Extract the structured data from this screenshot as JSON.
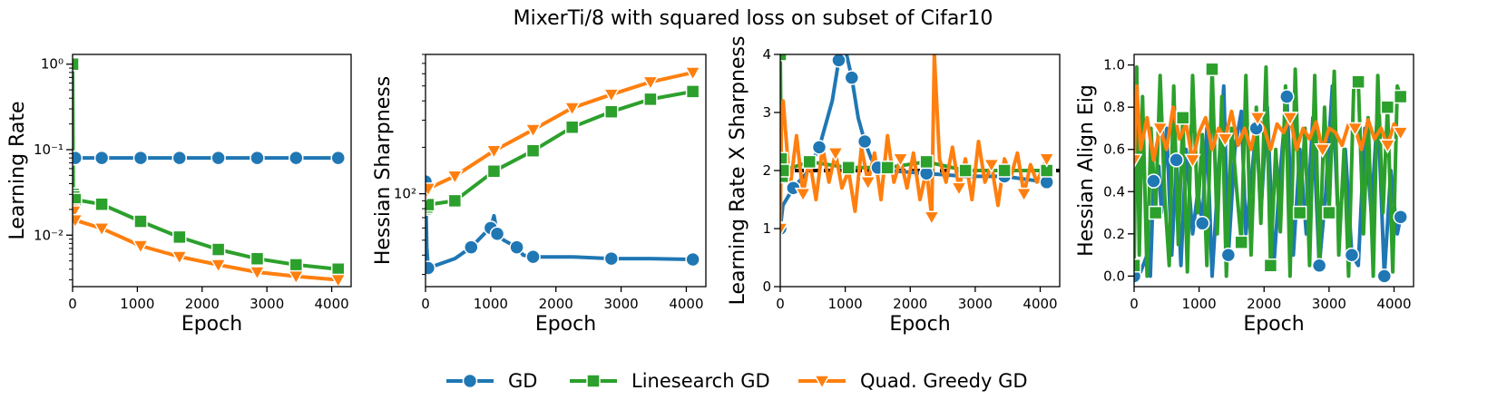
{
  "figure_title": "MixerTi/8 with squared loss on subset of Cifar10",
  "colors": {
    "GD": "#1f77b4",
    "Linesearch GD": "#2ca02c",
    "Quad. Greedy GD": "#ff7f0e",
    "reference": "#000000"
  },
  "legend": [
    {
      "name": "GD",
      "marker": "circle",
      "color": "#1f77b4"
    },
    {
      "name": "Linesearch GD",
      "marker": "square",
      "color": "#2ca02c"
    },
    {
      "name": "Quad. Greedy GD",
      "marker": "triangle-down",
      "color": "#ff7f0e"
    }
  ],
  "chart_data": [
    {
      "type": "line",
      "xlabel": "Epoch",
      "ylabel": "Learning Rate",
      "xlim": [
        0,
        4300
      ],
      "ylim": [
        0.0025,
        1.3
      ],
      "yscale": "log",
      "xticks": [
        0,
        1000,
        2000,
        3000,
        4000
      ],
      "xtick_labels": [
        "0",
        "1000",
        "2000",
        "3000",
        "4000"
      ],
      "yticks": [
        0.01,
        0.1,
        1
      ],
      "ytick_labels": [
        "10⁻²",
        "10⁻¹",
        "10⁰"
      ],
      "series": [
        {
          "name": "GD",
          "x": [
            0,
            20,
            40,
            450,
            1050,
            1650,
            2250,
            2850,
            3450,
            4100
          ],
          "y": [
            0.08,
            0.08,
            0.08,
            0.08,
            0.08,
            0.08,
            0.08,
            0.08,
            0.08,
            0.08
          ]
        },
        {
          "name": "Linesearch GD",
          "x": [
            0,
            10,
            20,
            40,
            450,
            1050,
            1650,
            2250,
            2850,
            3450,
            4100
          ],
          "y": [
            1.0,
            0.03,
            0.028,
            0.026,
            0.023,
            0.0145,
            0.0095,
            0.0068,
            0.0053,
            0.0045,
            0.004
          ]
        },
        {
          "name": "Quad. Greedy GD",
          "x": [
            0,
            20,
            40,
            450,
            1050,
            1650,
            2250,
            2850,
            3450,
            4100
          ],
          "y": [
            0.02,
            0.019,
            0.015,
            0.012,
            0.0075,
            0.0056,
            0.0045,
            0.0037,
            0.0033,
            0.003
          ]
        }
      ]
    },
    {
      "type": "line",
      "xlabel": "Epoch",
      "ylabel": "Hessian Sharpness",
      "xlim": [
        0,
        4300
      ],
      "ylim": [
        25,
        800
      ],
      "yscale": "log",
      "xticks": [
        0,
        1000,
        2000,
        3000,
        4000
      ],
      "xtick_labels": [
        "0",
        "1000",
        "2000",
        "3000",
        "4000"
      ],
      "yticks": [
        100
      ],
      "ytick_labels": [
        "10²"
      ],
      "series": [
        {
          "name": "GD",
          "x": [
            0,
            20,
            40,
            450,
            700,
            900,
            1000,
            1050,
            1100,
            1200,
            1400,
            1500,
            1650,
            2250,
            2850,
            3450,
            4100
          ],
          "y": [
            120,
            45,
            33,
            38,
            45,
            55,
            60,
            72,
            55,
            50,
            45,
            40,
            39,
            39,
            38,
            38,
            37.5
          ]
        },
        {
          "name": "Linesearch GD",
          "x": [
            0,
            20,
            40,
            450,
            1050,
            1650,
            2250,
            2850,
            3450,
            4100
          ],
          "y": [
            80,
            82,
            85,
            90,
            140,
            190,
            270,
            340,
            410,
            460
          ]
        },
        {
          "name": "Quad. Greedy GD",
          "x": [
            0,
            20,
            40,
            450,
            1050,
            1650,
            2250,
            2850,
            3450,
            4100
          ],
          "y": [
            100,
            105,
            108,
            130,
            190,
            260,
            360,
            440,
            530,
            610
          ]
        }
      ]
    },
    {
      "type": "line",
      "xlabel": "Epoch",
      "ylabel": "Learning Rate X Sharpness",
      "xlim": [
        0,
        4300
      ],
      "ylim": [
        0,
        4
      ],
      "xticks": [
        0,
        1000,
        2000,
        3000,
        4000
      ],
      "xtick_labels": [
        "0",
        "1000",
        "2000",
        "3000",
        "4000"
      ],
      "yticks": [
        0,
        1,
        2,
        3,
        4
      ],
      "ytick_labels": [
        "0",
        "1",
        "2",
        "3",
        "4"
      ],
      "reference_line": {
        "y": 2,
        "style": "dashed",
        "color": "#000000"
      },
      "series": [
        {
          "name": "GD",
          "x": [
            0,
            40,
            200,
            400,
            600,
            800,
            900,
            1000,
            1100,
            1200,
            1300,
            1400,
            1500,
            1650,
            2250,
            2850,
            3450,
            4100
          ],
          "y": [
            1.0,
            1.4,
            1.7,
            1.95,
            2.4,
            3.2,
            3.9,
            4.1,
            3.6,
            2.9,
            2.5,
            2.2,
            2.05,
            2.0,
            1.95,
            1.9,
            1.9,
            1.8
          ]
        },
        {
          "name": "Linesearch GD",
          "x": [
            0,
            15,
            30,
            45,
            450,
            1050,
            1650,
            2250,
            2850,
            3450,
            4100
          ],
          "y": [
            4.0,
            2.2,
            1.9,
            2.0,
            2.15,
            2.05,
            2.05,
            2.15,
            2.0,
            2.0,
            2.0
          ]
        },
        {
          "name": "Quad. Greedy GD",
          "x": [
            0,
            20,
            45,
            150,
            250,
            350,
            450,
            550,
            650,
            750,
            850,
            950,
            1050,
            1150,
            1250,
            1350,
            1450,
            1550,
            1650,
            1750,
            1850,
            1950,
            2050,
            2150,
            2250,
            2330,
            2370,
            2450,
            2550,
            2650,
            2750,
            2850,
            2950,
            3050,
            3150,
            3250,
            3350,
            3450,
            3550,
            3650,
            3750,
            3850,
            3950,
            4100
          ],
          "y": [
            1.0,
            3.0,
            3.2,
            1.7,
            2.6,
            1.6,
            2.2,
            1.5,
            2.4,
            1.8,
            2.3,
            1.7,
            2.0,
            1.3,
            2.4,
            1.8,
            2.3,
            1.5,
            2.6,
            1.8,
            2.2,
            1.7,
            2.3,
            1.5,
            2.0,
            1.2,
            4.0,
            2.2,
            1.8,
            2.4,
            1.7,
            2.2,
            1.5,
            2.5,
            1.8,
            2.1,
            1.4,
            2.2,
            1.9,
            2.3,
            1.6,
            2.1,
            1.8,
            2.2
          ]
        }
      ]
    },
    {
      "type": "line",
      "xlabel": "Epoch",
      "ylabel": "Hessian Align Eig",
      "xlim": [
        0,
        4300
      ],
      "ylim": [
        -0.05,
        1.05
      ],
      "xticks": [
        0,
        1000,
        2000,
        3000,
        4000
      ],
      "xtick_labels": [
        "0",
        "1000",
        "2000",
        "3000",
        "4000"
      ],
      "yticks": [
        0.0,
        0.2,
        0.4,
        0.6,
        0.8,
        1.0
      ],
      "ytick_labels": [
        "0.0",
        "0.2",
        "0.4",
        "0.6",
        "0.8",
        "1.0"
      ],
      "series": [
        {
          "name": "GD",
          "x": [
            0,
            40,
            100,
            200,
            250,
            300,
            380,
            420,
            500,
            580,
            650,
            720,
            800,
            900,
            980,
            1050,
            1120,
            1200,
            1300,
            1380,
            1450,
            1550,
            1650,
            1720,
            1800,
            1880,
            1950,
            2050,
            2150,
            2250,
            2350,
            2450,
            2550,
            2650,
            2750,
            2850,
            2950,
            3050,
            3150,
            3250,
            3350,
            3450,
            3550,
            3650,
            3750,
            3850,
            3950,
            4050,
            4100
          ],
          "y": [
            0.0,
            0.05,
            0.02,
            0.1,
            0.0,
            0.45,
            0.52,
            0.3,
            0.7,
            0.1,
            0.55,
            0.05,
            0.6,
            0.2,
            0.4,
            0.25,
            0.7,
            0.0,
            0.5,
            0.9,
            0.1,
            0.6,
            0.78,
            0.2,
            0.45,
            0.7,
            0.3,
            0.8,
            0.05,
            0.5,
            0.85,
            0.1,
            0.6,
            0.2,
            0.75,
            0.05,
            0.4,
            0.9,
            0.2,
            0.6,
            0.1,
            0.05,
            0.7,
            0.3,
            0.8,
            0.0,
            0.5,
            0.2,
            0.28
          ]
        },
        {
          "name": "Linesearch GD",
          "x": [
            0,
            40,
            80,
            130,
            200,
            260,
            330,
            400,
            470,
            540,
            610,
            680,
            750,
            820,
            900,
            980,
            1050,
            1120,
            1200,
            1280,
            1350,
            1420,
            1500,
            1580,
            1650,
            1720,
            1800,
            1880,
            1950,
            2030,
            2100,
            2180,
            2250,
            2330,
            2400,
            2480,
            2550,
            2630,
            2700,
            2780,
            2850,
            2930,
            3000,
            3080,
            3150,
            3230,
            3300,
            3380,
            3450,
            3530,
            3600,
            3680,
            3750,
            3830,
            3900,
            3980,
            4050,
            4100
          ],
          "y": [
            0.05,
            0.99,
            0.1,
            0.85,
            0.0,
            0.7,
            0.3,
            0.95,
            0.38,
            0.05,
            0.9,
            0.15,
            0.75,
            0.02,
            0.95,
            0.3,
            0.67,
            0.05,
            0.98,
            0.2,
            0.85,
            0.0,
            0.7,
            0.4,
            0.16,
            0.95,
            0.1,
            0.8,
            0.25,
            0.99,
            0.05,
            0.6,
            0.21,
            0.9,
            0.0,
            0.98,
            0.3,
            0.7,
            0.05,
            0.95,
            0.05,
            0.8,
            0.3,
            0.97,
            0.1,
            0.6,
            0.0,
            0.9,
            0.92,
            0.2,
            0.75,
            0.0,
            0.95,
            0.3,
            0.8,
            0.02,
            0.9,
            0.85
          ]
        },
        {
          "name": "Quad. Greedy GD",
          "x": [
            0,
            40,
            100,
            200,
            300,
            400,
            500,
            600,
            700,
            800,
            900,
            1000,
            1100,
            1200,
            1300,
            1400,
            1500,
            1600,
            1700,
            1800,
            1900,
            2000,
            2100,
            2200,
            2300,
            2400,
            2500,
            2600,
            2700,
            2800,
            2900,
            3000,
            3100,
            3200,
            3300,
            3400,
            3500,
            3600,
            3700,
            3800,
            3900,
            4000,
            4100
          ],
          "y": [
            0.55,
            0.9,
            0.6,
            0.75,
            0.55,
            0.7,
            0.6,
            0.8,
            0.65,
            0.72,
            0.55,
            0.68,
            0.75,
            0.6,
            0.7,
            0.65,
            0.78,
            0.62,
            0.7,
            0.6,
            0.75,
            0.7,
            0.6,
            0.72,
            0.68,
            0.75,
            0.6,
            0.7,
            0.65,
            0.73,
            0.6,
            0.7,
            0.68,
            0.62,
            0.72,
            0.7,
            0.6,
            0.74,
            0.65,
            0.7,
            0.62,
            0.72,
            0.68
          ]
        }
      ]
    }
  ]
}
